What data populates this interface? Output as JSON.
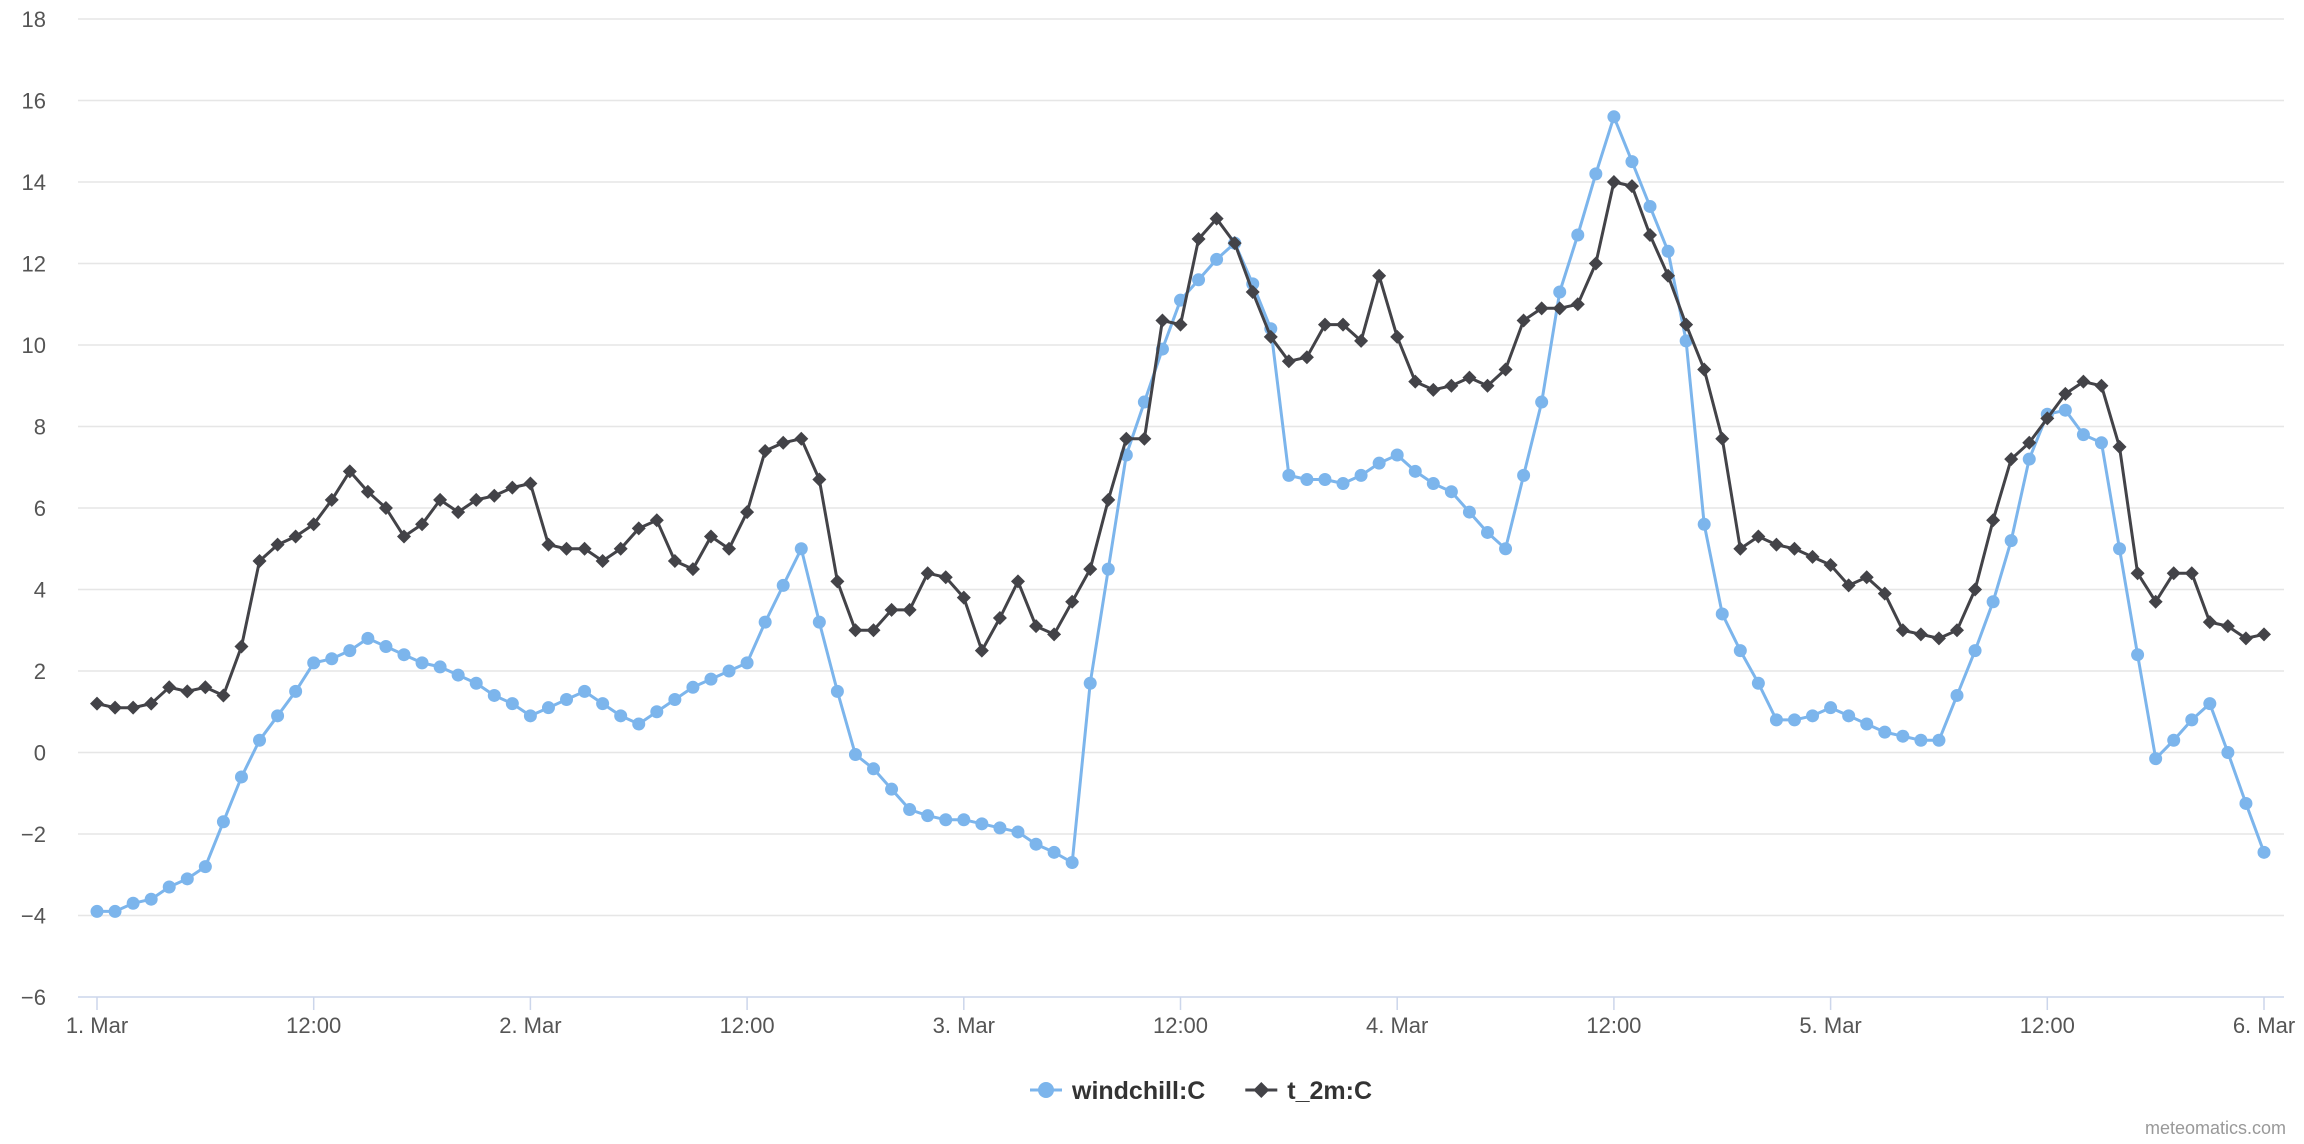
{
  "chart_data": {
    "type": "line",
    "title": "",
    "xlabel": "",
    "ylabel": "",
    "ylim": [
      -6,
      18
    ],
    "yticks": [
      -6,
      -4,
      -2,
      0,
      2,
      4,
      6,
      8,
      10,
      12,
      14,
      16,
      18
    ],
    "x_start": "1. Mar 00:00",
    "x_step_hours": 1,
    "xticks": [
      {
        "hour": 0,
        "label": "1. Mar"
      },
      {
        "hour": 12,
        "label": "12:00"
      },
      {
        "hour": 24,
        "label": "2. Mar"
      },
      {
        "hour": 36,
        "label": "12:00"
      },
      {
        "hour": 48,
        "label": "3. Mar"
      },
      {
        "hour": 60,
        "label": "12:00"
      },
      {
        "hour": 72,
        "label": "4. Mar"
      },
      {
        "hour": 84,
        "label": "12:00"
      },
      {
        "hour": 96,
        "label": "5. Mar"
      },
      {
        "hour": 108,
        "label": "12:00"
      },
      {
        "hour": 120,
        "label": "6. Mar"
      }
    ],
    "grid": true,
    "legend_position": "bottom-center",
    "series": [
      {
        "name": "windchill:C",
        "color": "#7cb5ec",
        "marker": "circle",
        "values": [
          -3.9,
          -3.9,
          -3.7,
          -3.6,
          -3.3,
          -3.1,
          -2.8,
          -1.7,
          -0.6,
          0.3,
          0.9,
          1.5,
          2.2,
          2.3,
          2.5,
          2.8,
          2.6,
          2.4,
          2.2,
          2.1,
          1.9,
          1.7,
          1.4,
          1.2,
          0.9,
          1.1,
          1.3,
          1.5,
          1.2,
          0.9,
          0.7,
          1.0,
          1.3,
          1.6,
          1.8,
          2.0,
          2.2,
          3.2,
          4.1,
          5.0,
          3.2,
          1.5,
          -0.05,
          -0.4,
          -0.9,
          -1.4,
          -1.55,
          -1.65,
          -1.65,
          -1.75,
          -1.85,
          -1.95,
          -2.25,
          -2.45,
          -2.7,
          1.7,
          4.5,
          7.3,
          8.6,
          9.9,
          11.1,
          11.6,
          12.1,
          12.5,
          11.5,
          10.4,
          6.8,
          6.7,
          6.7,
          6.6,
          6.8,
          7.1,
          7.3,
          6.9,
          6.6,
          6.4,
          5.9,
          5.4,
          5.0,
          6.8,
          8.6,
          11.3,
          12.7,
          14.2,
          15.6,
          14.5,
          13.4,
          12.3,
          10.1,
          5.6,
          3.4,
          2.5,
          1.7,
          0.8,
          0.8,
          0.9,
          1.1,
          0.9,
          0.7,
          0.5,
          0.4,
          0.3,
          0.3,
          1.4,
          2.5,
          3.7,
          5.2,
          7.2,
          8.3,
          8.4,
          7.8,
          7.6,
          5.0,
          2.4,
          -0.15,
          0.3,
          0.8,
          1.2,
          0.0,
          -1.25,
          -2.45
        ]
      },
      {
        "name": "t_2m:C",
        "color": "#434348",
        "marker": "diamond",
        "values": [
          1.2,
          1.1,
          1.1,
          1.2,
          1.6,
          1.5,
          1.6,
          1.4,
          2.6,
          4.7,
          5.1,
          5.3,
          5.6,
          6.2,
          6.9,
          6.4,
          6.0,
          5.3,
          5.6,
          6.2,
          5.9,
          6.2,
          6.3,
          6.5,
          6.6,
          5.1,
          5.0,
          5.0,
          4.7,
          5.0,
          5.5,
          5.7,
          4.7,
          4.5,
          5.3,
          5.0,
          5.9,
          7.4,
          7.6,
          7.7,
          6.7,
          4.2,
          3.0,
          3.0,
          3.5,
          3.5,
          4.4,
          4.3,
          3.8,
          2.5,
          3.3,
          4.2,
          3.1,
          2.9,
          3.7,
          4.5,
          6.2,
          7.7,
          7.7,
          10.6,
          10.5,
          12.6,
          13.1,
          12.5,
          11.3,
          10.2,
          9.6,
          9.7,
          10.5,
          10.5,
          10.1,
          11.7,
          10.2,
          9.1,
          8.9,
          9.0,
          9.2,
          9.0,
          9.4,
          10.6,
          10.9,
          10.9,
          11.0,
          12.0,
          14.0,
          13.9,
          12.7,
          11.7,
          10.5,
          9.4,
          7.7,
          5.0,
          5.3,
          5.1,
          5.0,
          4.8,
          4.6,
          4.1,
          4.3,
          3.9,
          3.0,
          2.9,
          2.8,
          3.0,
          4.0,
          5.7,
          7.2,
          7.6,
          8.2,
          8.8,
          9.1,
          9.0,
          7.5,
          4.4,
          3.7,
          4.4,
          4.4,
          3.2,
          3.1,
          2.8,
          2.9
        ]
      }
    ]
  },
  "credits": "meteomatics.com"
}
